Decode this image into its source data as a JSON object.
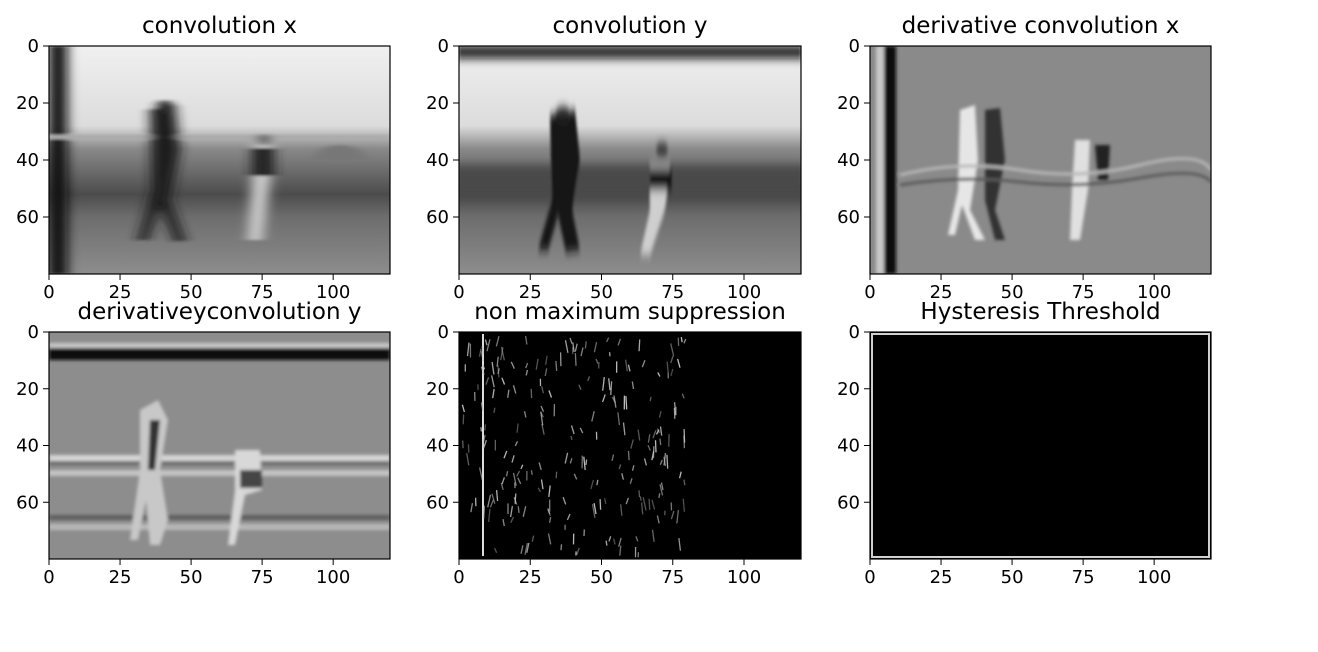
{
  "chart_data": [
    {
      "type": "heatmap",
      "title": "convolution x",
      "content": "golf swing scene (blurred horizontally)",
      "xlim": [
        0,
        120
      ],
      "ylim": [
        80,
        0
      ],
      "xticks": [
        0,
        25,
        50,
        75,
        100
      ],
      "yticks": [
        0,
        20,
        40,
        60
      ],
      "colormap": "gray"
    },
    {
      "type": "heatmap",
      "title": "convolution y",
      "content": "golf swing scene (blurred vertically)",
      "xlim": [
        0,
        120
      ],
      "ylim": [
        80,
        0
      ],
      "xticks": [
        0,
        25,
        50,
        75,
        100
      ],
      "yticks": [
        0,
        20,
        40,
        60
      ],
      "colormap": "gray"
    },
    {
      "type": "heatmap",
      "title": "derivative convolution x",
      "content": "horizontal gradient image",
      "xlim": [
        0,
        120
      ],
      "ylim": [
        80,
        0
      ],
      "xticks": [
        0,
        25,
        50,
        75,
        100
      ],
      "yticks": [
        0,
        20,
        40,
        60
      ],
      "colormap": "gray"
    },
    {
      "type": "heatmap",
      "title": "derivativeyconvolution y",
      "content": "vertical gradient image",
      "xlim": [
        0,
        120
      ],
      "ylim": [
        80,
        0
      ],
      "xticks": [
        0,
        25,
        50,
        75,
        100
      ],
      "yticks": [
        0,
        20,
        40,
        60
      ],
      "colormap": "gray"
    },
    {
      "type": "heatmap",
      "title": "non maximum suppression",
      "content": "sparse edge map on black",
      "xlim": [
        0,
        120
      ],
      "ylim": [
        80,
        0
      ],
      "xticks": [
        0,
        25,
        50,
        75,
        100
      ],
      "yticks": [
        0,
        20,
        40,
        60
      ],
      "colormap": "gray"
    },
    {
      "type": "heatmap",
      "title": "Hysteresis Threshold",
      "content": "nearly all black, thin bright border",
      "xlim": [
        0,
        120
      ],
      "ylim": [
        80,
        0
      ],
      "xticks": [
        0,
        25,
        50,
        75,
        100
      ],
      "yticks": [
        0,
        20,
        40,
        60
      ],
      "colormap": "gray"
    }
  ]
}
